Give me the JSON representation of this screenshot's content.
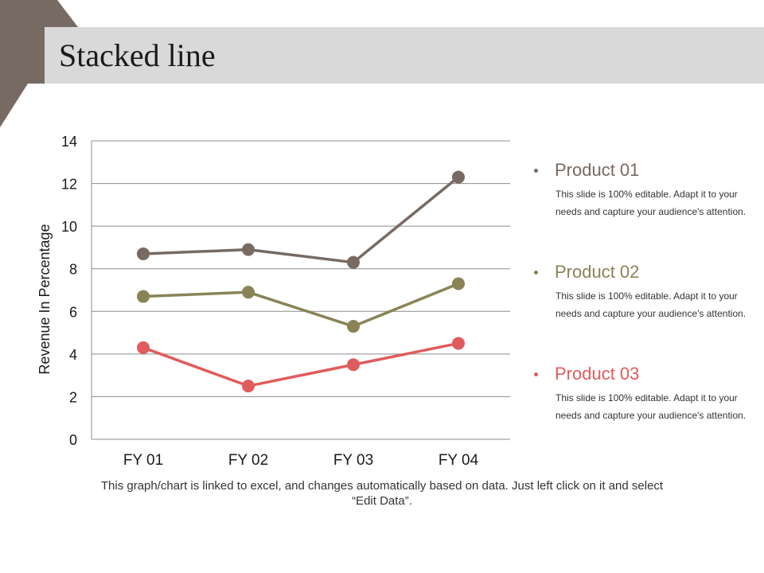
{
  "slide": {
    "title": "Stacked line",
    "note": "This graph/chart is linked to excel, and changes automatically based on data. Just left click on it and select “Edit Data”."
  },
  "colors": {
    "corner": "#776a62",
    "band": "#d9d9d9",
    "product01": "#776a62",
    "product02": "#8a8356",
    "product03": "#e05c5c"
  },
  "legend": [
    {
      "title": "Product 01",
      "desc": "This slide is 100% editable. Adapt it to your needs and capture your audience's attention."
    },
    {
      "title": "Product 02",
      "desc": "This slide is 100% editable. Adapt it to your needs and capture your audience's attention."
    },
    {
      "title": "Product 03",
      "desc": "This slide is 100% editable. Adapt it to your needs and capture your audience's attention."
    }
  ],
  "chart_data": {
    "type": "line",
    "title": "",
    "xlabel": "",
    "ylabel": "Revenue In Percentage",
    "categories": [
      "FY 01",
      "FY 02",
      "FY 03",
      "FY 04"
    ],
    "ylim": [
      0,
      14
    ],
    "yticks": [
      0,
      2,
      4,
      6,
      8,
      10,
      12,
      14
    ],
    "grid": true,
    "legend_position": "right",
    "series": [
      {
        "name": "Product 01",
        "values": [
          8.7,
          8.9,
          8.3,
          12.3
        ]
      },
      {
        "name": "Product 02",
        "values": [
          6.7,
          6.9,
          5.3,
          7.3
        ]
      },
      {
        "name": "Product 03",
        "values": [
          4.3,
          2.5,
          3.5,
          4.5
        ]
      }
    ]
  }
}
